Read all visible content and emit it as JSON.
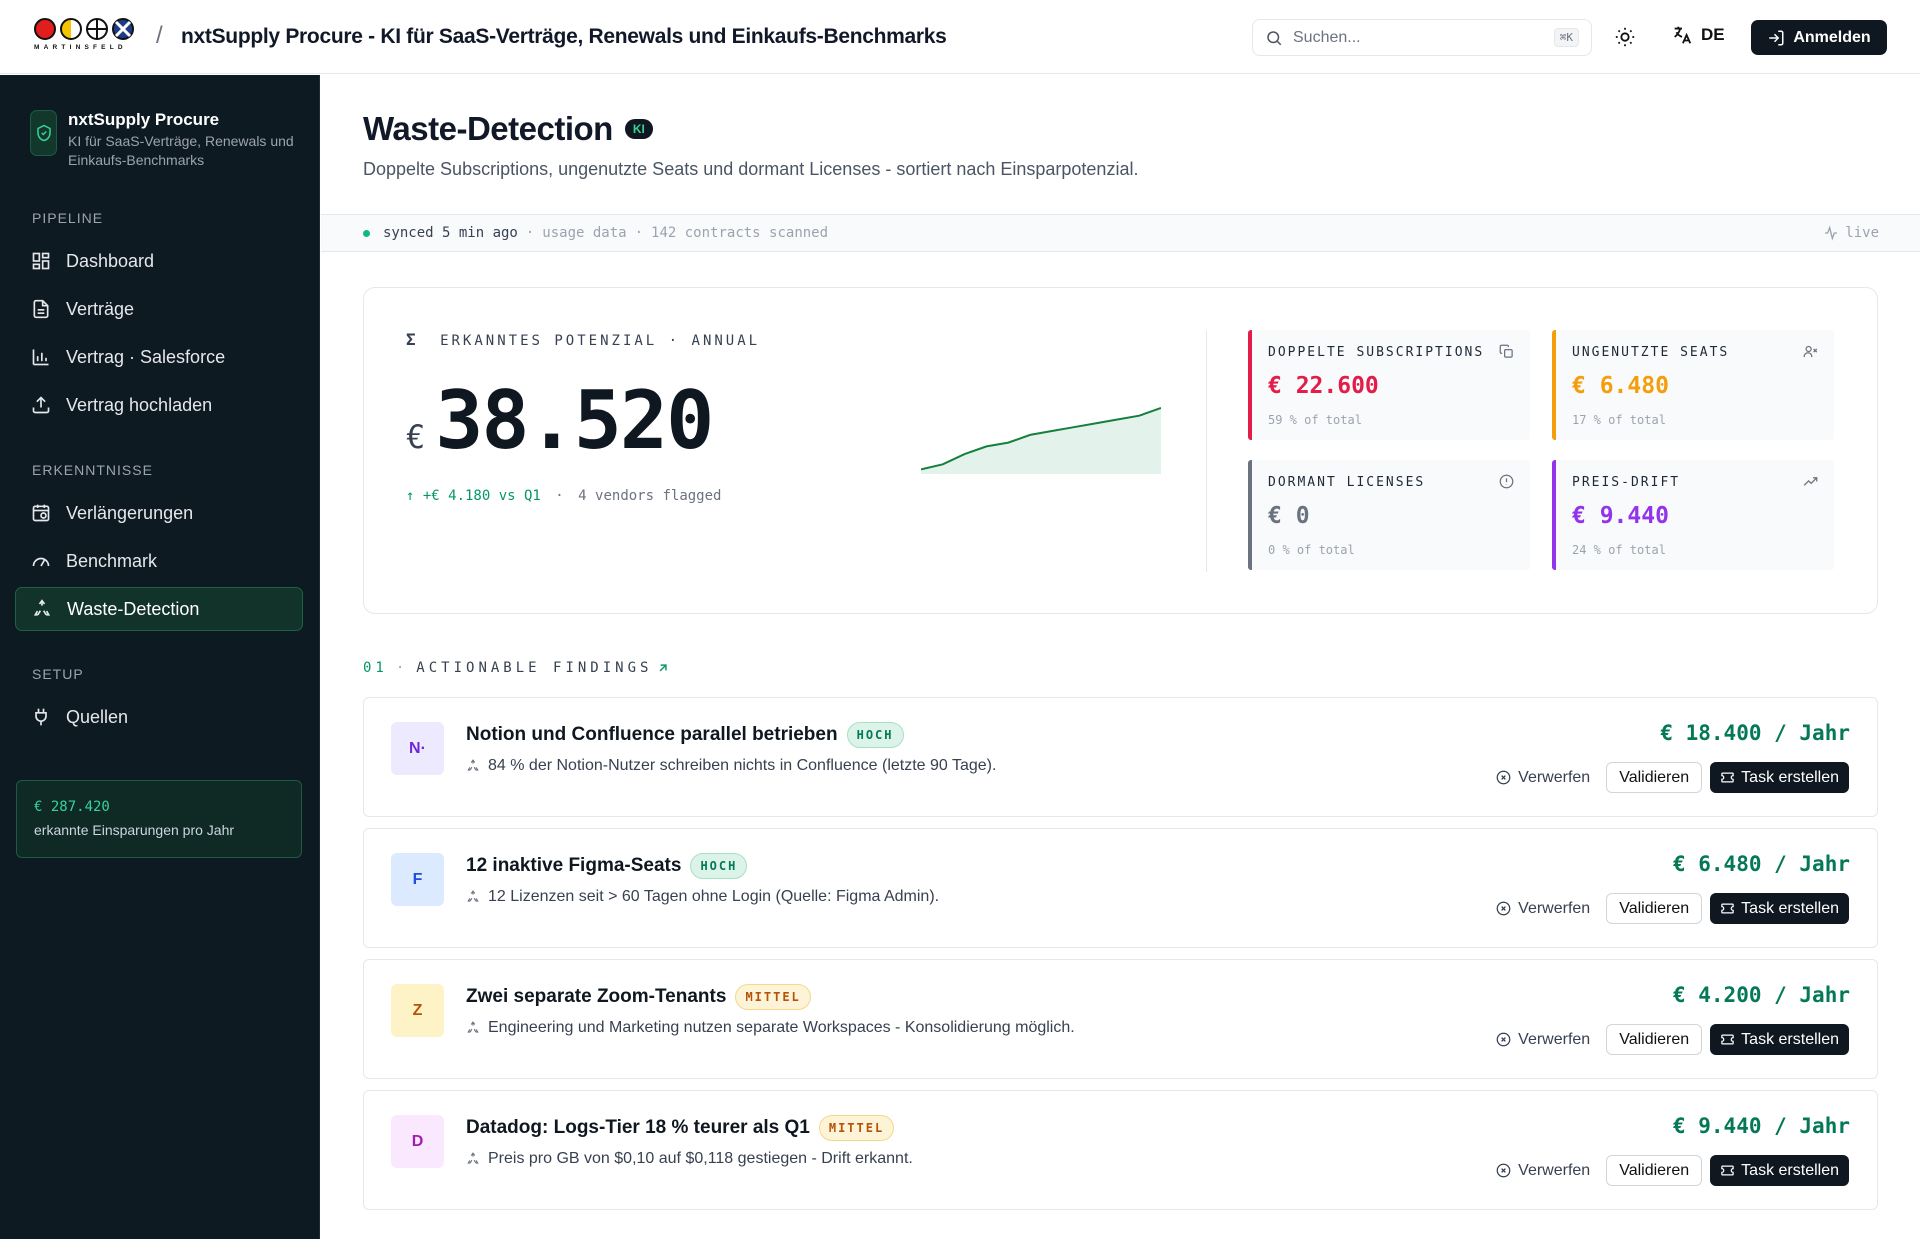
{
  "topbar": {
    "logo_word": "MARTINSFELD",
    "app_title": "nxtSupply Procure - KI für SaaS-Verträge, Renewals und Einkaufs-Benchmarks",
    "search_placeholder": "Suchen...",
    "search_shortcut": "⌘K",
    "language": "DE",
    "login_label": "Anmelden"
  },
  "sidebar": {
    "brand_name": "nxtSupply Procure",
    "brand_sub": "KI für SaaS-Verträge, Renewals und Einkaufs-Benchmarks",
    "sections": [
      {
        "label": "PIPELINE",
        "items": [
          {
            "label": "Dashboard",
            "icon": "dashboard-icon"
          },
          {
            "label": "Verträge",
            "icon": "document-icon"
          },
          {
            "label": "Vertrag · Salesforce",
            "icon": "bar-chart-icon"
          },
          {
            "label": "Vertrag hochladen",
            "icon": "upload-icon"
          }
        ]
      },
      {
        "label": "ERKENNTNISSE",
        "items": [
          {
            "label": "Verlängerungen",
            "icon": "calendar-clock-icon"
          },
          {
            "label": "Benchmark",
            "icon": "gauge-icon"
          },
          {
            "label": "Waste-Detection",
            "icon": "recycle-icon",
            "active": true
          }
        ]
      },
      {
        "label": "SETUP",
        "items": [
          {
            "label": "Quellen",
            "icon": "plug-icon"
          }
        ]
      }
    ],
    "savings_amount": "€ 287.420",
    "savings_label": "erkannte Einsparungen pro Jahr"
  },
  "page": {
    "title": "Waste-Detection",
    "badge": "KI",
    "subtitle": "Doppelte Subscriptions, ungenutzte Seats und dormant Licenses - sortiert nach Einsparpotenzial."
  },
  "status": {
    "synced": "synced 5 min ago",
    "source": "usage data",
    "scanned": "142 contracts scanned",
    "live": "live"
  },
  "potential": {
    "symbol": "Σ",
    "label": "ERKANNTES POTENZIAL · ANNUAL",
    "currency": "€",
    "value": "38.520",
    "delta": "↑ +€ 4.180 vs Q1",
    "vendors": "4 vendors flagged",
    "trend": [
      2,
      6,
      14,
      20,
      23,
      29,
      32,
      35,
      38,
      41,
      44,
      50
    ],
    "stats": [
      {
        "label": "DOPPELTE SUBSCRIPTIONS",
        "value": "€ 22.600",
        "pct": "59 % of total",
        "color": "#e11d48",
        "icon": "copy-icon"
      },
      {
        "label": "UNGENUTZTE SEATS",
        "value": "€ 6.480",
        "pct": "17 % of total",
        "color": "#f59e0b",
        "icon": "user-x-icon"
      },
      {
        "label": "DORMANT LICENSES",
        "value": "€ 0",
        "pct": "0 % of total",
        "color": "#6b7280",
        "icon": "alert-circle-icon"
      },
      {
        "label": "PREIS-DRIFT",
        "value": "€ 9.440",
        "pct": "24 % of total",
        "color": "#9333ea",
        "icon": "trend-up-icon"
      }
    ]
  },
  "findings_header": {
    "num": "01",
    "label": "ACTIONABLE FINDINGS"
  },
  "findings": [
    {
      "avatar": "N·",
      "avatar_bg": "#ede9fe",
      "avatar_fg": "#6d28d9",
      "title": "Notion und Confluence parallel betrieben",
      "severity": "HOCH",
      "sev_class": "hoch",
      "desc": "84 % der Notion-Nutzer schreiben nichts in Confluence (letzte 90 Tage).",
      "amount": "€ 18.400 / Jahr"
    },
    {
      "avatar": "F",
      "avatar_bg": "#dbeafe",
      "avatar_fg": "#1d4ed8",
      "title": "12 inaktive Figma-Seats",
      "severity": "HOCH",
      "sev_class": "hoch",
      "desc": "12 Lizenzen seit > 60 Tagen ohne Login (Quelle: Figma Admin).",
      "amount": "€ 6.480 / Jahr"
    },
    {
      "avatar": "Z",
      "avatar_bg": "#fef3c7",
      "avatar_fg": "#b45309",
      "title": "Zwei separate Zoom-Tenants",
      "severity": "MITTEL",
      "sev_class": "mittel",
      "desc": "Engineering und Marketing nutzen separate Workspaces - Konsolidierung möglich.",
      "amount": "€ 4.200 / Jahr"
    },
    {
      "avatar": "D",
      "avatar_bg": "#fae8ff",
      "avatar_fg": "#a21caf",
      "title": "Datadog: Logs-Tier 18 % teurer als Q1",
      "severity": "MITTEL",
      "sev_class": "mittel",
      "desc": "Preis pro GB von $0,10 auf $0,118 gestiegen - Drift erkannt.",
      "amount": "€ 9.440 / Jahr"
    }
  ],
  "actions": {
    "discard": "Verwerfen",
    "validate": "Validieren",
    "task": "Task erstellen"
  }
}
